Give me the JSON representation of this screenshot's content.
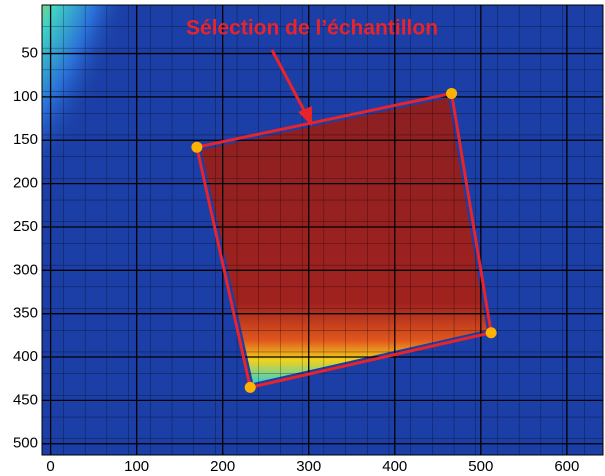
{
  "chart_data": {
    "type": "image",
    "annotation": "Sélection de l’échantillon",
    "xlim": [
      -10,
      642
    ],
    "ylim": [
      -6,
      513
    ],
    "xticks": [
      0,
      100,
      200,
      300,
      400,
      500,
      600
    ],
    "yticks": [
      50,
      100,
      150,
      200,
      250,
      300,
      350,
      400,
      450,
      500
    ],
    "grid": true,
    "selection": {
      "color": "#e8232a",
      "corner_color": "#ffb300",
      "x": [
        466,
        512,
        232,
        170
      ],
      "y": [
        96,
        372,
        435,
        158
      ]
    }
  }
}
